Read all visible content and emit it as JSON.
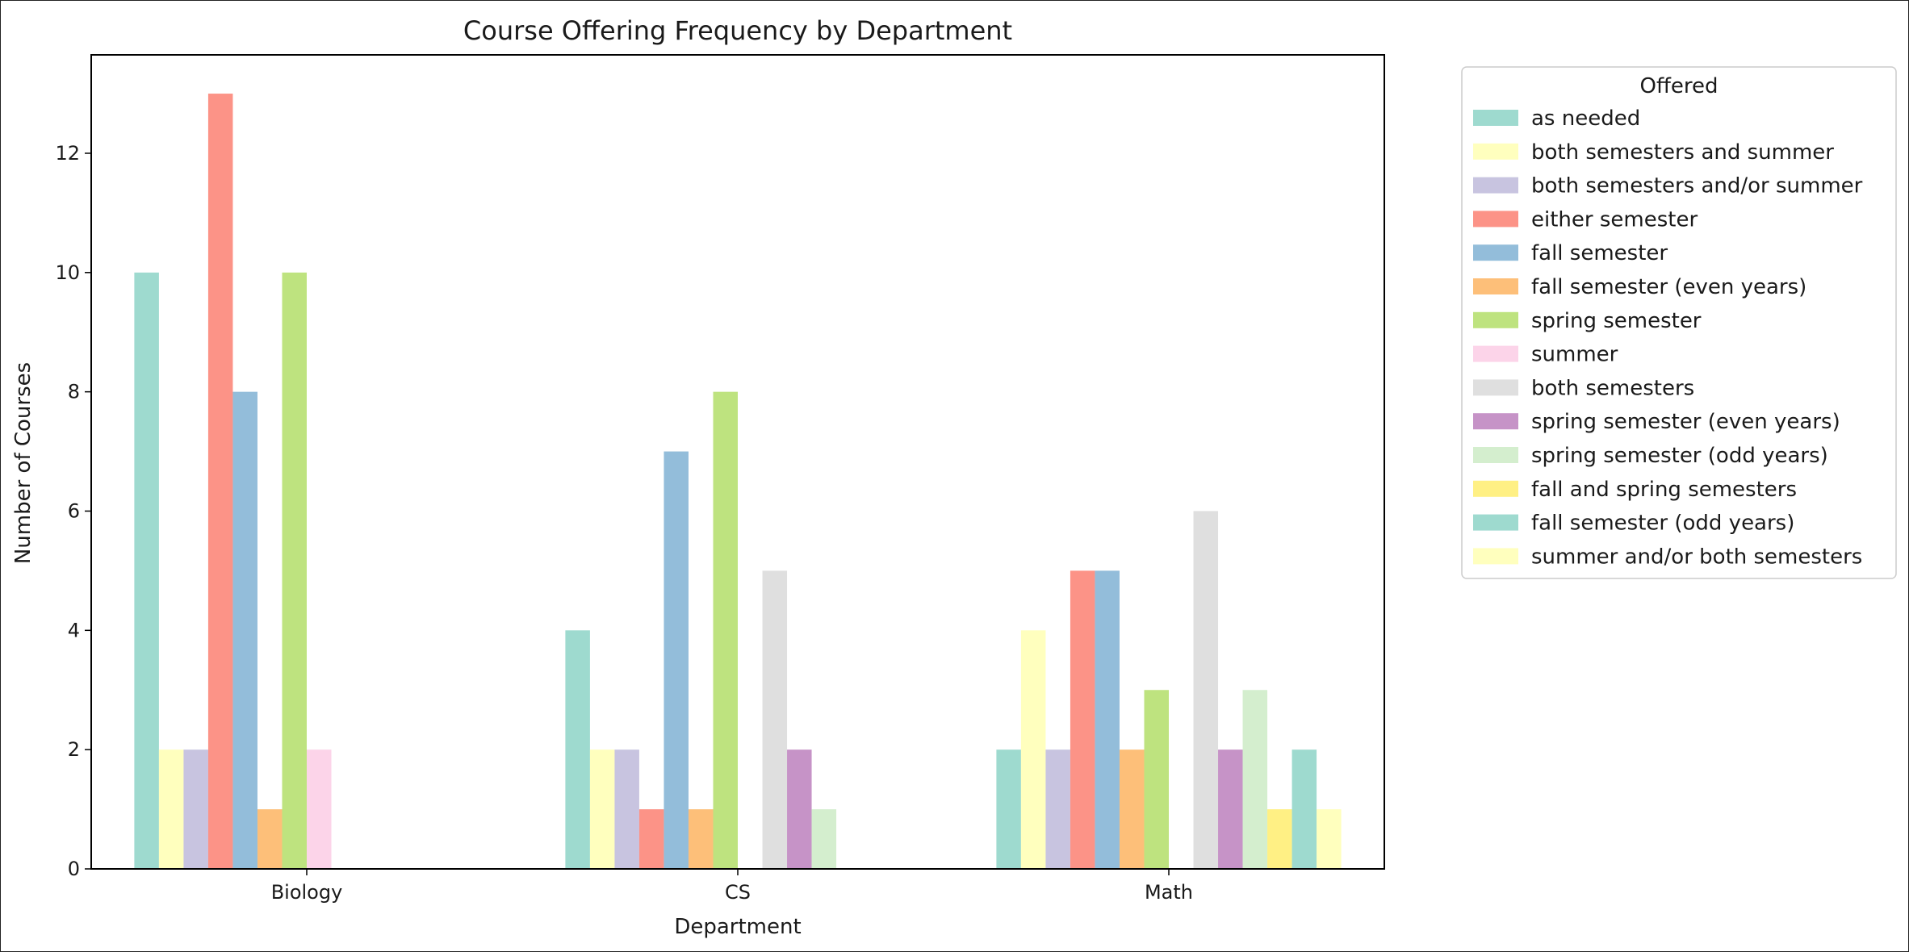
{
  "chart_data": {
    "type": "bar",
    "title": "Course Offering Frequency by Department",
    "xlabel": "Department",
    "ylabel": "Number of Courses",
    "categories": [
      "Biology",
      "CS",
      "Math"
    ],
    "ylim": [
      0,
      13.65
    ],
    "yticks": [
      0,
      2,
      4,
      6,
      8,
      10,
      12
    ],
    "grid": false,
    "legend": {
      "title": "Offered",
      "placement": "outside-top-right"
    },
    "series": [
      {
        "name": "as needed",
        "color": "#8dd3c7",
        "values": [
          10,
          4,
          2
        ]
      },
      {
        "name": "both semesters and summer",
        "color": "#ffffb3",
        "values": [
          2,
          2,
          4
        ]
      },
      {
        "name": "both semesters and/or summer",
        "color": "#bebada",
        "values": [
          2,
          2,
          2
        ]
      },
      {
        "name": "either semester",
        "color": "#fb8072",
        "values": [
          13,
          1,
          5
        ]
      },
      {
        "name": "fall semester",
        "color": "#80b1d3",
        "values": [
          8,
          7,
          5
        ]
      },
      {
        "name": "fall semester (even years)",
        "color": "#fdb462",
        "values": [
          1,
          1,
          2
        ]
      },
      {
        "name": "spring semester",
        "color": "#b3de69",
        "values": [
          10,
          8,
          3
        ]
      },
      {
        "name": "summer",
        "color": "#fccde5",
        "values": [
          2,
          null,
          null
        ]
      },
      {
        "name": "both semesters",
        "color": "#d9d9d9",
        "values": [
          null,
          5,
          6
        ]
      },
      {
        "name": "spring semester (even years)",
        "color": "#bc80bd",
        "values": [
          null,
          2,
          2
        ]
      },
      {
        "name": "spring semester (odd years)",
        "color": "#ccebc5",
        "values": [
          null,
          1,
          3
        ]
      },
      {
        "name": "fall and spring semesters",
        "color": "#ffed6f",
        "values": [
          null,
          null,
          1
        ]
      },
      {
        "name": "fall semester (odd years)",
        "color": "#8dd3c7",
        "values": [
          null,
          null,
          2
        ]
      },
      {
        "name": "summer and/or both semesters",
        "color": "#ffffb3",
        "values": [
          null,
          null,
          1
        ]
      }
    ]
  }
}
